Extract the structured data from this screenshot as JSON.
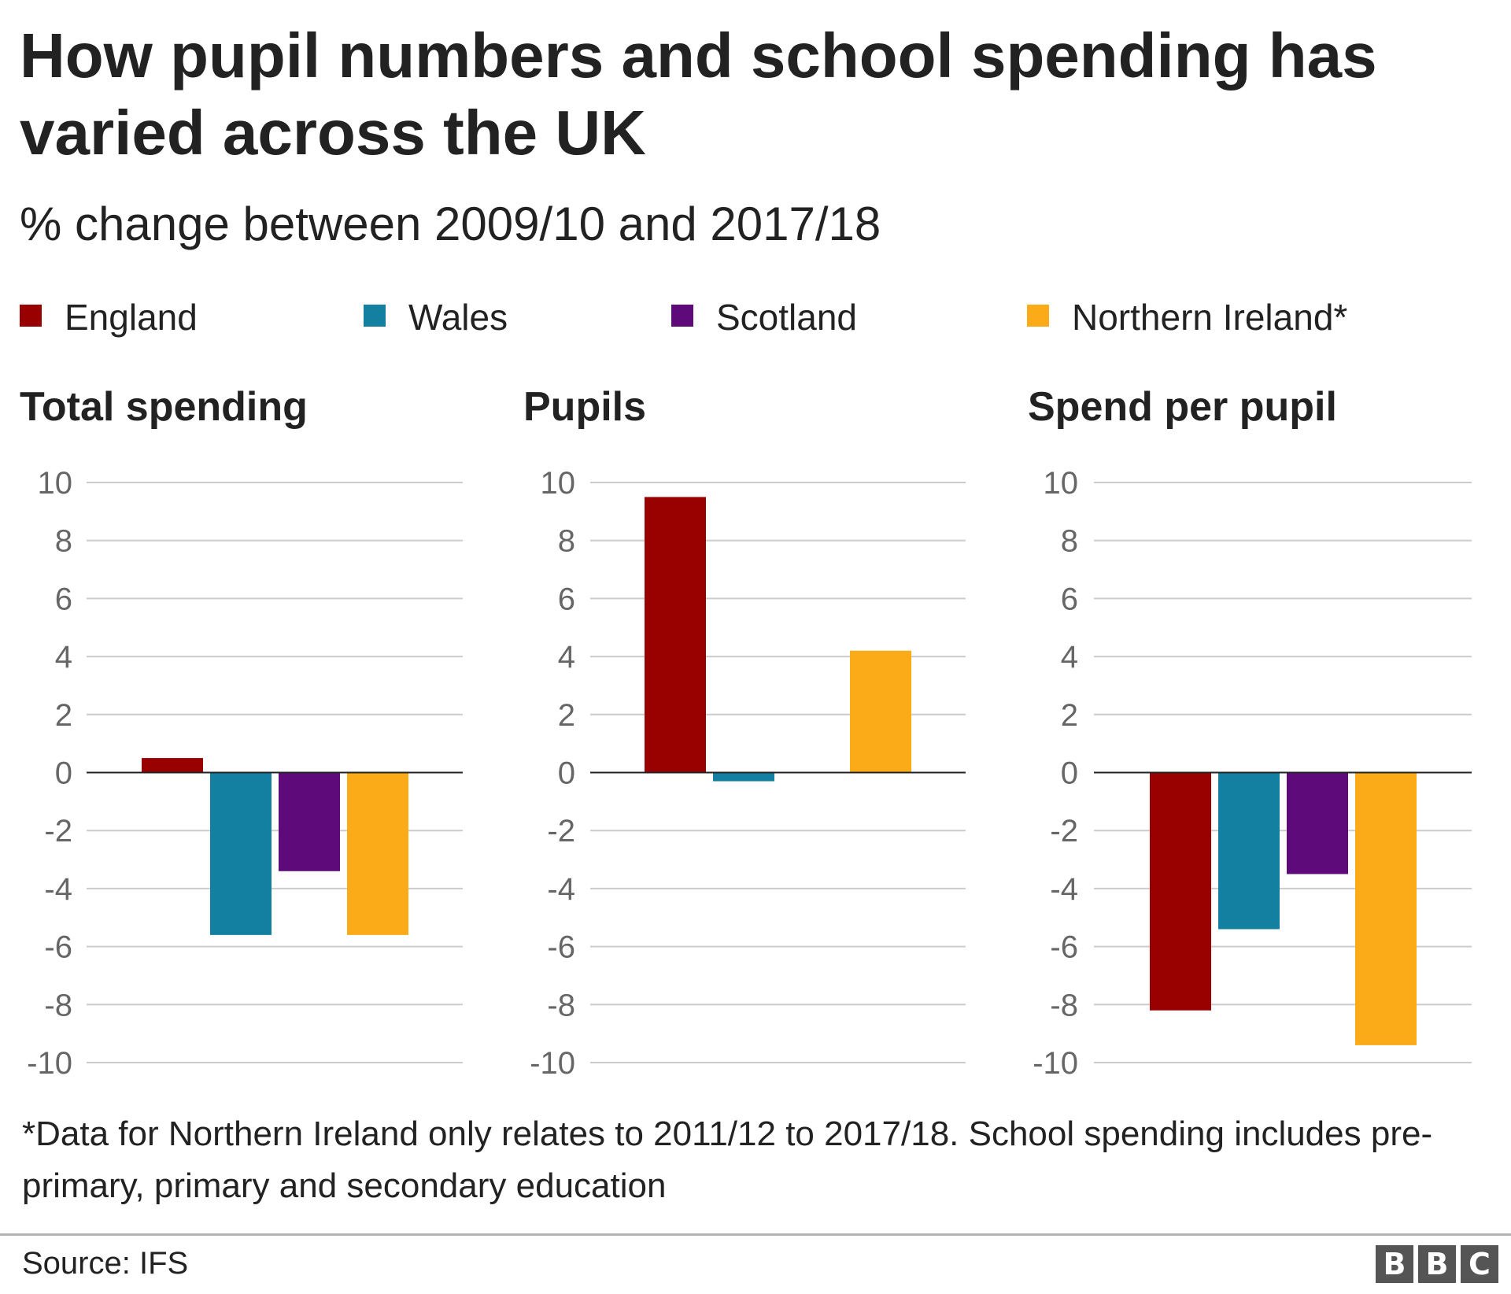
{
  "title": "How pupil numbers and school spending has varied across the UK",
  "subtitle": "% change between 2009/10 and 2017/18",
  "colors": {
    "England": "#990000",
    "Wales": "#1380a1",
    "Scotland": "#5e0a7a",
    "Northern Ireland": "#fbab18"
  },
  "legend": [
    {
      "label": "England",
      "color": "#990000"
    },
    {
      "label": "Wales",
      "color": "#1380a1"
    },
    {
      "label": "Scotland",
      "color": "#5e0a7a"
    },
    {
      "label": "Northern Ireland*",
      "color": "#fbab18"
    }
  ],
  "chart_data": [
    {
      "type": "bar",
      "title": "Total spending",
      "categories": [
        "England",
        "Wales",
        "Scotland",
        "Northern Ireland"
      ],
      "values": [
        0.5,
        -5.6,
        -3.4,
        -5.6
      ],
      "ylim": [
        -10,
        10
      ],
      "yticks": [
        10,
        8,
        6,
        4,
        2,
        0,
        -2,
        -4,
        -6,
        -8,
        -10
      ],
      "grid": true,
      "legend": "top"
    },
    {
      "type": "bar",
      "title": "Pupils",
      "categories": [
        "England",
        "Wales",
        "Scotland",
        "Northern Ireland"
      ],
      "values": [
        9.5,
        -0.3,
        0,
        4.2
      ],
      "ylim": [
        -10,
        10
      ],
      "yticks": [
        10,
        8,
        6,
        4,
        2,
        0,
        -2,
        -4,
        -6,
        -8,
        -10
      ],
      "grid": true,
      "legend": "top"
    },
    {
      "type": "bar",
      "title": "Spend per pupil",
      "categories": [
        "England",
        "Wales",
        "Scotland",
        "Northern Ireland"
      ],
      "values": [
        -8.2,
        -5.4,
        -3.5,
        -9.4
      ],
      "ylim": [
        -10,
        10
      ],
      "yticks": [
        10,
        8,
        6,
        4,
        2,
        0,
        -2,
        -4,
        -6,
        -8,
        -10
      ],
      "grid": true,
      "legend": "top"
    }
  ],
  "footnote": "*Data for Northern Ireland only relates to 2011/12 to 2017/18. School spending includes pre-primary, primary and secondary education",
  "source": "Source: IFS",
  "logo": {
    "letters": [
      "B",
      "B",
      "C"
    ]
  }
}
